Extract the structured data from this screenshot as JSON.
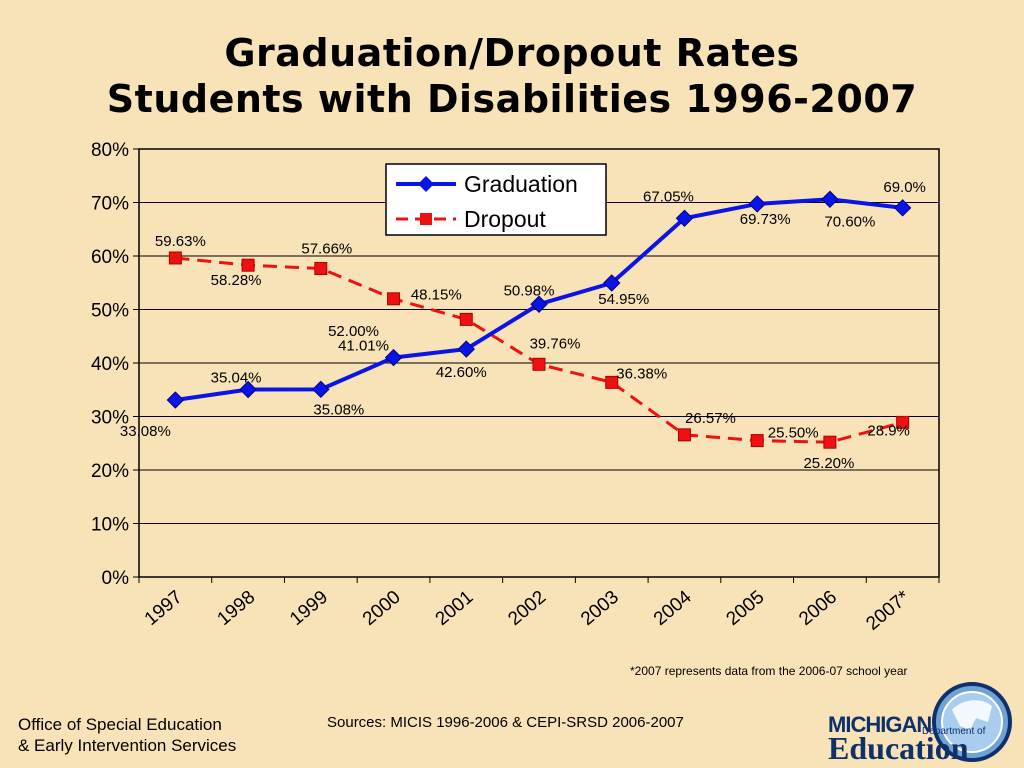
{
  "title_line1": "Graduation/Dropout Rates",
  "title_line2": "Students with Disabilities 1996-2007",
  "footnote": "*2007 represents data from the 2006-07 school year",
  "sources": "Sources:  MICIS 1996-2006 & CEPI-SRSD 2006-2007",
  "office_line1": "Office of Special Education",
  "office_line2": "& Early Intervention Services",
  "logo": {
    "michigan": "MICHIGAN",
    "department": "Department of",
    "education": "Education"
  },
  "colors": {
    "background": "#f7e3b7",
    "graduation": "#0a14e6",
    "dropout": "#ee1111"
  },
  "chart_data": {
    "type": "line",
    "categories": [
      "1997",
      "1998",
      "1999",
      "2000",
      "2001",
      "2002",
      "2003",
      "2004",
      "2005",
      "2006",
      "2007*"
    ],
    "ylim": [
      0,
      80
    ],
    "yticks": [
      "0%",
      "10%",
      "20%",
      "30%",
      "40%",
      "50%",
      "60%",
      "70%",
      "80%"
    ],
    "grid": true,
    "legend": "top-center",
    "series": [
      {
        "name": "Graduation",
        "marker": "diamond",
        "line": "solid",
        "values": [
          33.08,
          35.04,
          35.08,
          41.01,
          42.6,
          50.98,
          54.95,
          67.05,
          69.73,
          70.6,
          69.0
        ],
        "labels": [
          "33.08%",
          "35.04%",
          "35.08%",
          "41.01%",
          "42.60%",
          "50.98%",
          "54.95%",
          "67.05%",
          "69.73%",
          "70.60%",
          "69.0%"
        ]
      },
      {
        "name": "Dropout",
        "marker": "square",
        "line": "dashed",
        "values": [
          59.63,
          58.28,
          57.66,
          52.0,
          48.15,
          39.76,
          36.38,
          26.57,
          25.5,
          25.2,
          28.9
        ],
        "labels": [
          "59.63%",
          "58.28%",
          "57.66%",
          "52.00%",
          "48.15%",
          "39.76%",
          "36.38%",
          "26.57%",
          "25.50%",
          "25.20%",
          "28.9%"
        ]
      }
    ]
  }
}
